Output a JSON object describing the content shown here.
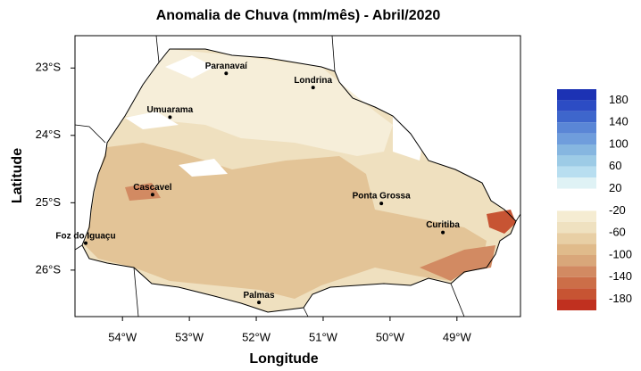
{
  "chart_data": {
    "type": "contour-map",
    "title": "Anomalia de Chuva (mm/mês) - Abril/2020",
    "x_label": "Longitude",
    "y_label": "Latitude",
    "xlim": [
      -54.71,
      -48.05
    ],
    "ylim": [
      -26.69,
      -22.52
    ],
    "xticks": [
      {
        "value": -54,
        "label": "54°W"
      },
      {
        "value": -53,
        "label": "53°W"
      },
      {
        "value": -52,
        "label": "52°W"
      },
      {
        "value": -51,
        "label": "51°W"
      },
      {
        "value": -50,
        "label": "50°W"
      },
      {
        "value": -49,
        "label": "49°W"
      }
    ],
    "yticks": [
      {
        "value": -23,
        "label": "23°S"
      },
      {
        "value": -24,
        "label": "24°S"
      },
      {
        "value": -25,
        "label": "25°S"
      },
      {
        "value": -26,
        "label": "26°S"
      }
    ],
    "cities": [
      {
        "name": "Paranavaí",
        "lon": -52.45,
        "lat": -23.08
      },
      {
        "name": "Londrina",
        "lon": -51.15,
        "lat": -23.29
      },
      {
        "name": "Umuarama",
        "lon": -53.29,
        "lat": -23.73
      },
      {
        "name": "Cascavel",
        "lon": -53.55,
        "lat": -24.88
      },
      {
        "name": "Ponta Grossa",
        "lon": -50.13,
        "lat": -25.01
      },
      {
        "name": "Curitiba",
        "lon": -49.21,
        "lat": -25.44
      },
      {
        "name": "Foz do Iguaçu",
        "lon": -54.55,
        "lat": -25.6
      },
      {
        "name": "Palmas",
        "lon": -51.96,
        "lat": -26.48
      }
    ],
    "colorbar": {
      "bounds": [
        200,
        180,
        160,
        140,
        120,
        100,
        80,
        60,
        40,
        20,
        0,
        -20,
        -40,
        -60,
        -80,
        -100,
        -120,
        -140,
        -160,
        -180,
        -200
      ],
      "colors": [
        "#1c32b4",
        "#2c4cc4",
        "#3e66cc",
        "#5a86d6",
        "#6f9ddc",
        "#86b6e0",
        "#9dcbe6",
        "#b8def0",
        "#dff2f5",
        "#ffffff",
        "#ffffff",
        "#f5ecd2",
        "#efe1c0",
        "#e8cfa5",
        "#e0bb8b",
        "#d9a77a",
        "#d28a62",
        "#cc6e48",
        "#c75433",
        "#c0301f"
      ],
      "ticks": [
        180,
        140,
        100,
        60,
        20,
        -20,
        -60,
        -100,
        -140,
        -180
      ]
    }
  }
}
